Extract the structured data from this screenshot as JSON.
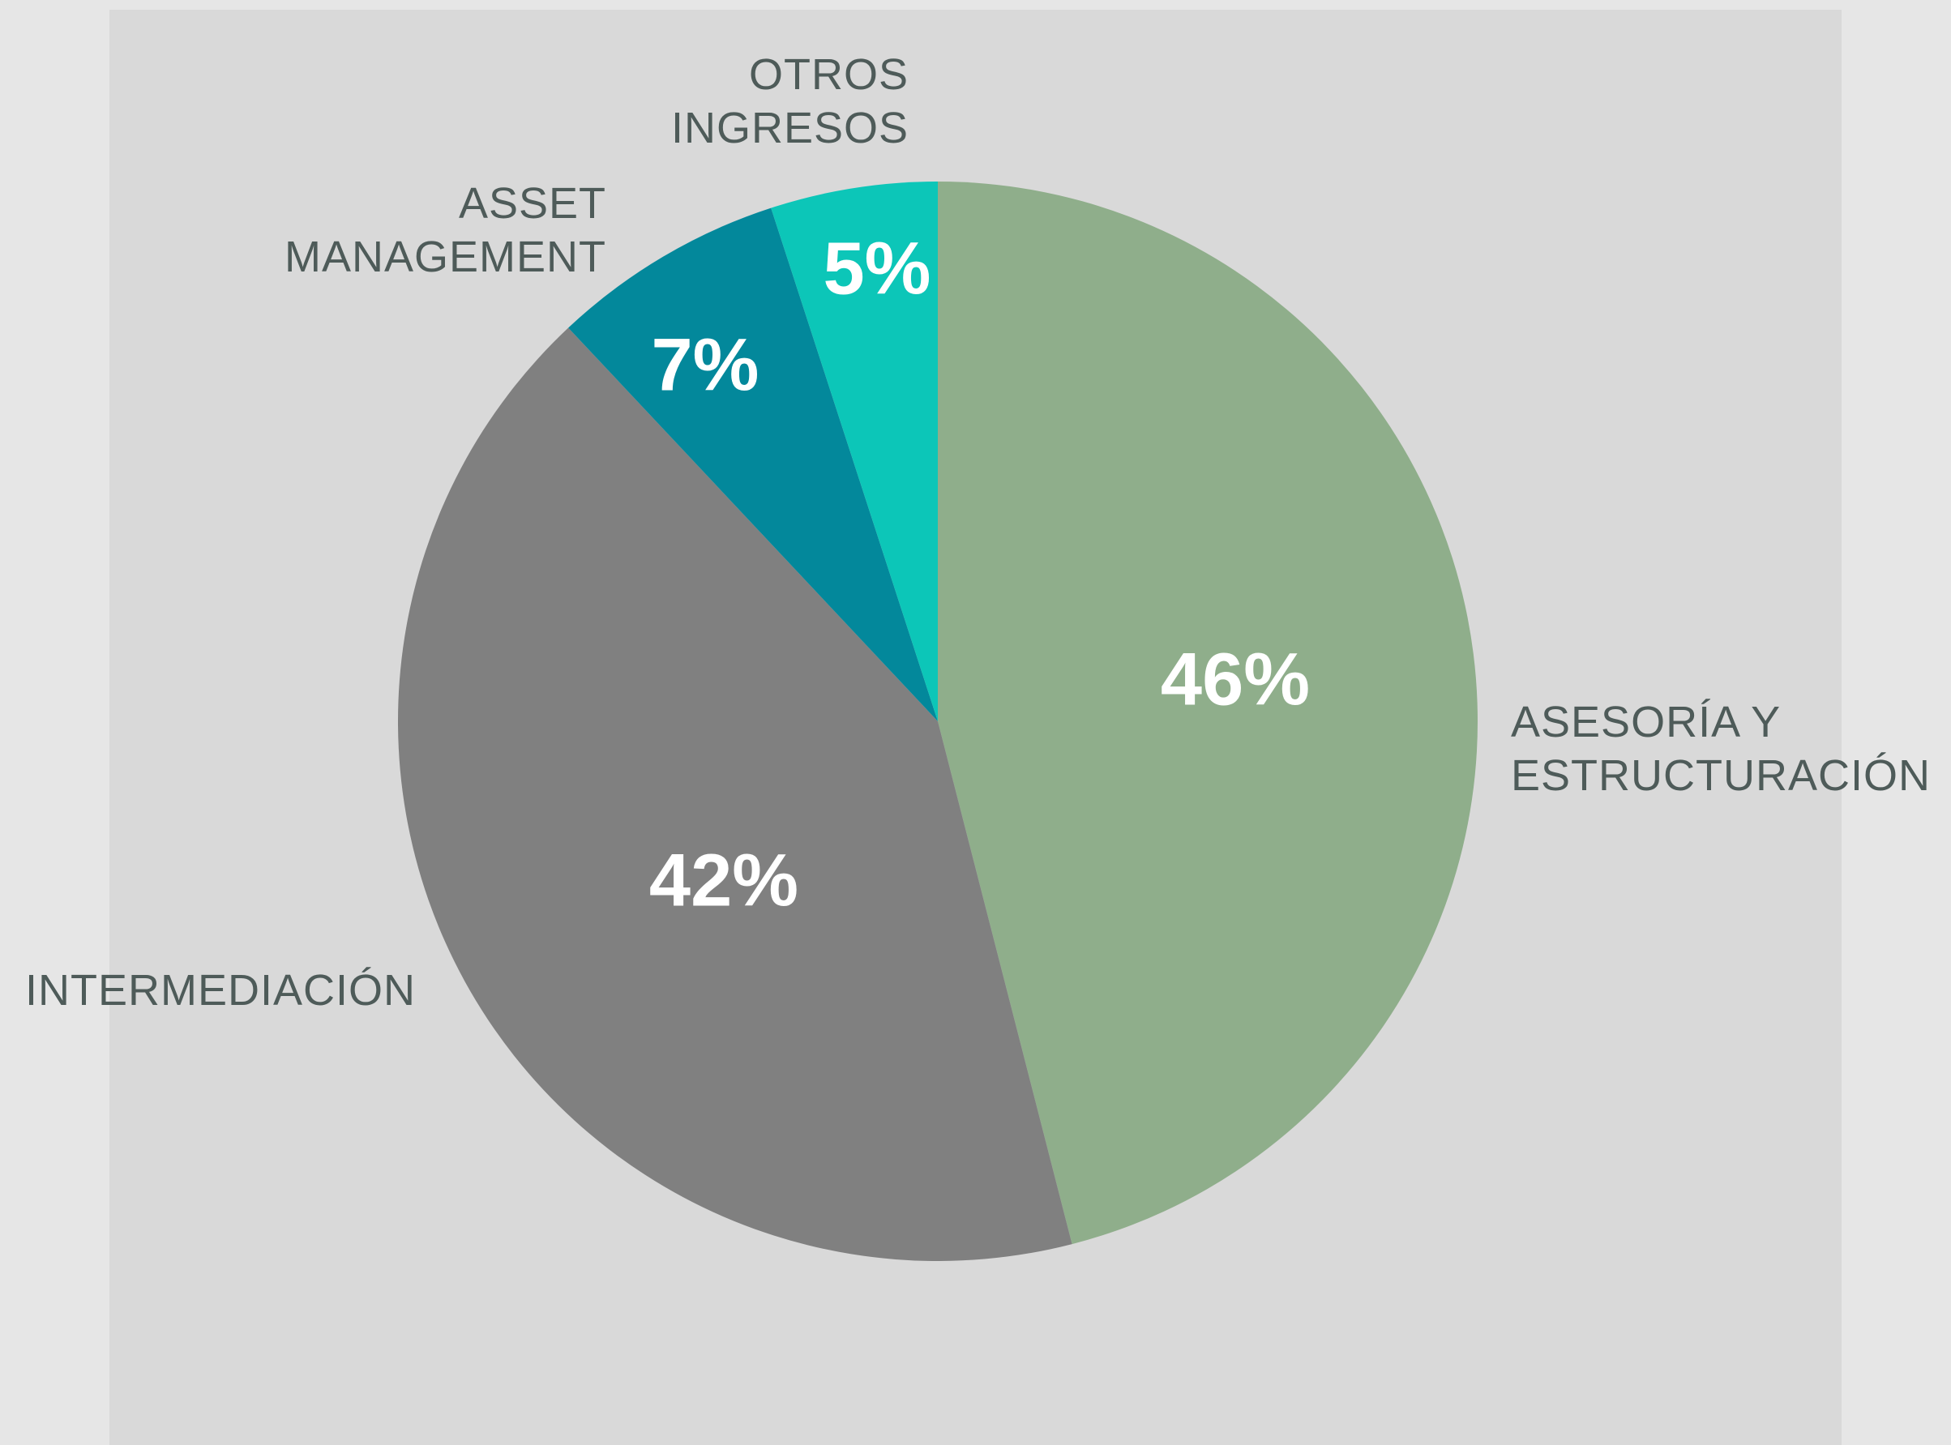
{
  "chart_data": {
    "type": "pie",
    "categories": [
      "ASESORÍA Y ESTRUCTURACIÓN",
      "INTERMEDIACIÓN",
      "ASSET MANAGEMENT",
      "OTROS INGRESOS"
    ],
    "values": [
      46,
      42,
      7,
      5
    ],
    "value_labels": [
      "46%",
      "42%",
      "7%",
      "5%"
    ],
    "colors": [
      "#8fae8b",
      "#808080",
      "#03889b",
      "#0cc6b8"
    ]
  }
}
